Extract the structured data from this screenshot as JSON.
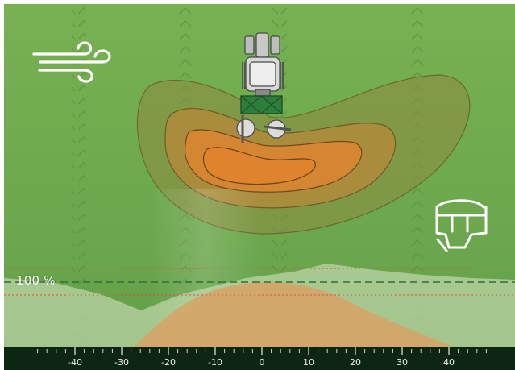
{
  "colors": {
    "field": "#6fa84e",
    "field_dark": "#4f8d3a",
    "spread_outer": "#8a8a3c",
    "spread_mid": "#b78a3a",
    "spread_inner": "#e0832b",
    "profile_fill": "#d9a060",
    "ruler_bg": "#0d2614",
    "reference_line": "#2f6e3a",
    "tolerance_line": "#e04b3a",
    "icon_stroke": "#ffffff"
  },
  "icons": {
    "wind": "wind-icon",
    "tractor": "tractor-icon",
    "spreader": "fertilizer-spreader-icon"
  },
  "profile": {
    "reference_label": "100 %"
  },
  "ruler": {
    "ticks": [
      "-40",
      "-30",
      "-20",
      "-10",
      "0",
      "10",
      "20",
      "30",
      "40"
    ]
  }
}
